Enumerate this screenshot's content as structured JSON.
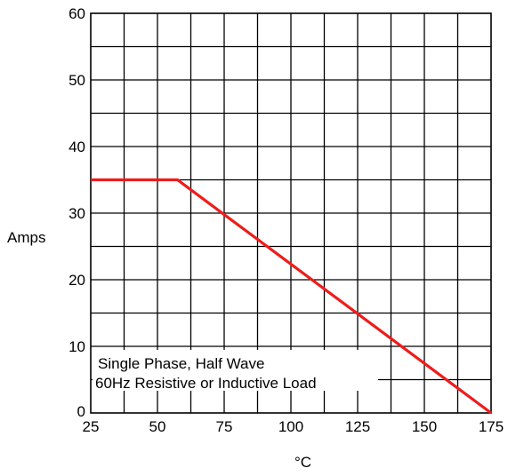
{
  "chart_data": {
    "type": "line",
    "title": "",
    "xlabel": "°C",
    "ylabel": "Amps",
    "xlim": [
      25,
      175
    ],
    "ylim": [
      0,
      60
    ],
    "x_ticks": [
      25,
      50,
      75,
      100,
      125,
      150,
      175
    ],
    "y_ticks": [
      0,
      10,
      20,
      30,
      40,
      50,
      60
    ],
    "x_tick_labels": [
      "25",
      "50",
      "75",
      "100",
      "125",
      "150",
      "175"
    ],
    "y_tick_labels": [
      "0",
      "10",
      "20",
      "30",
      "40",
      "50",
      "60"
    ],
    "grid": true,
    "legend": "none",
    "series": [
      {
        "color": "#ee1c1c",
        "x": [
          25,
          57.5,
          175
        ],
        "y": [
          35,
          35,
          0
        ]
      }
    ],
    "annotations": [
      "Single Phase, Half Wave",
      "60Hz Resistive or Inductive Load"
    ]
  }
}
